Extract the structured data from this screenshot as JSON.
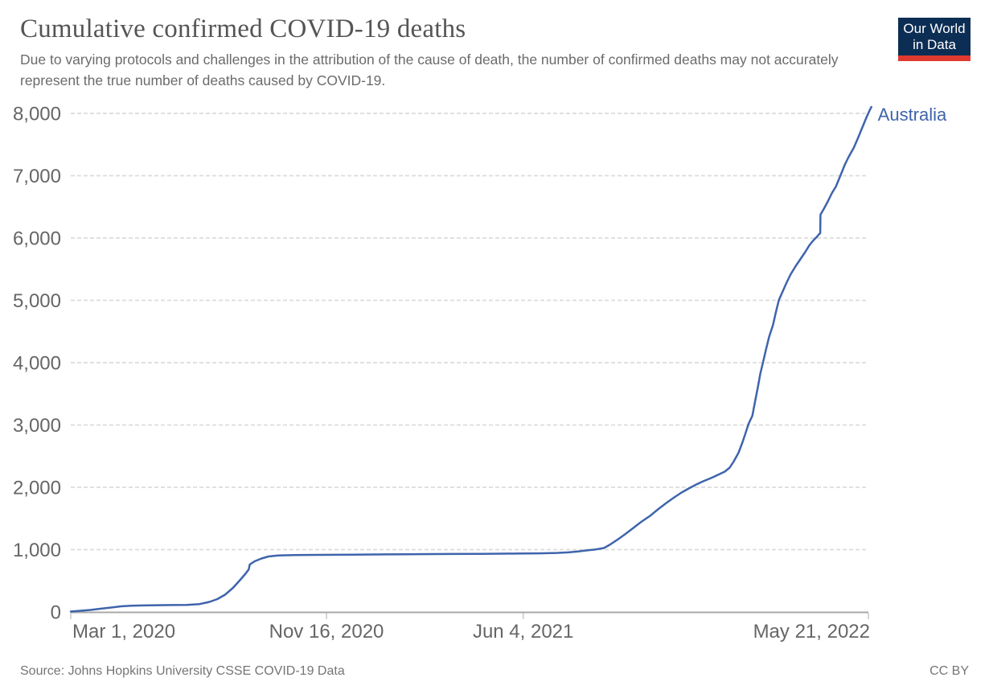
{
  "header": {
    "title": "Cumulative confirmed COVID-19 deaths",
    "subtitle": "Due to varying protocols and challenges in the attribution of the cause of death, the number of confirmed deaths may not accurately represent the true number of deaths caused by COVID-19.",
    "logo": {
      "line1": "Our World",
      "line2": "in Data",
      "bg_color": "#0d2e54",
      "stripe_color": "#e0392f"
    }
  },
  "footer": {
    "source": "Source: Johns Hopkins University CSSE COVID-19 Data",
    "license": "CC BY"
  },
  "colors": {
    "line_blue": "#3e64ac",
    "gridline": "#dcdcdc",
    "axis": "#a8a8a8",
    "tick": "#c8c8c8",
    "tick_label": "#666666"
  },
  "chart_data": {
    "type": "line",
    "title": "Cumulative confirmed COVID-19 deaths",
    "xlabel": "",
    "ylabel": "",
    "x_unit": "days since Mar 1, 2020",
    "xlim_days": [
      0,
      811
    ],
    "ylim": [
      0,
      8000
    ],
    "grid": "horizontal-dashed",
    "legend_position": "end-of-line",
    "x_ticks": [
      {
        "day": 0,
        "label": "Mar 1, 2020",
        "align": "start"
      },
      {
        "day": 260,
        "label": "Nov 16, 2020",
        "align": "middle"
      },
      {
        "day": 460,
        "label": "Jun 4, 2021",
        "align": "middle"
      },
      {
        "day": 811,
        "label": "May 21, 2022",
        "align": "end"
      }
    ],
    "y_ticks": [
      {
        "value": 0,
        "label": "0"
      },
      {
        "value": 1000,
        "label": "1,000"
      },
      {
        "value": 2000,
        "label": "2,000"
      },
      {
        "value": 3000,
        "label": "3,000"
      },
      {
        "value": 4000,
        "label": "4,000"
      },
      {
        "value": 5000,
        "label": "5,000"
      },
      {
        "value": 6000,
        "label": "6,000"
      },
      {
        "value": 7000,
        "label": "7,000"
      },
      {
        "value": 8000,
        "label": "8,000"
      }
    ],
    "series": [
      {
        "name": "Australia",
        "color": "#3e64ac",
        "points": [
          [
            0,
            6
          ],
          [
            10,
            19
          ],
          [
            20,
            32
          ],
          [
            30,
            52
          ],
          [
            41,
            71
          ],
          [
            51,
            90
          ],
          [
            61,
            99
          ],
          [
            74,
            105
          ],
          [
            88,
            108
          ],
          [
            103,
            111
          ],
          [
            118,
            114
          ],
          [
            131,
            126
          ],
          [
            141,
            161
          ],
          [
            149,
            206
          ],
          [
            157,
            277
          ],
          [
            165,
            387
          ],
          [
            172,
            510
          ],
          [
            178,
            619
          ],
          [
            181,
            684
          ],
          [
            182,
            761
          ],
          [
            187,
            813
          ],
          [
            194,
            858
          ],
          [
            201,
            890
          ],
          [
            211,
            906
          ],
          [
            227,
            914
          ],
          [
            255,
            916
          ],
          [
            288,
            920
          ],
          [
            321,
            924
          ],
          [
            354,
            928
          ],
          [
            386,
            930
          ],
          [
            419,
            933
          ],
          [
            452,
            937
          ],
          [
            476,
            941
          ],
          [
            494,
            947
          ],
          [
            506,
            956
          ],
          [
            516,
            970
          ],
          [
            525,
            988
          ],
          [
            534,
            1004
          ],
          [
            542,
            1026
          ],
          [
            548,
            1077
          ],
          [
            556,
            1161
          ],
          [
            564,
            1252
          ],
          [
            572,
            1348
          ],
          [
            580,
            1445
          ],
          [
            589,
            1542
          ],
          [
            597,
            1645
          ],
          [
            605,
            1742
          ],
          [
            613,
            1832
          ],
          [
            621,
            1916
          ],
          [
            629,
            1987
          ],
          [
            636,
            2045
          ],
          [
            643,
            2097
          ],
          [
            651,
            2148
          ],
          [
            658,
            2200
          ],
          [
            665,
            2252
          ],
          [
            670,
            2316
          ],
          [
            674,
            2413
          ],
          [
            679,
            2555
          ],
          [
            683,
            2723
          ],
          [
            686,
            2865
          ],
          [
            689,
            3013
          ],
          [
            693,
            3148
          ],
          [
            696,
            3394
          ],
          [
            699,
            3639
          ],
          [
            701,
            3819
          ],
          [
            704,
            4013
          ],
          [
            707,
            4219
          ],
          [
            710,
            4413
          ],
          [
            714,
            4606
          ],
          [
            717,
            4813
          ],
          [
            720,
            5006
          ],
          [
            724,
            5148
          ],
          [
            728,
            5290
          ],
          [
            732,
            5419
          ],
          [
            737,
            5548
          ],
          [
            742,
            5664
          ],
          [
            747,
            5781
          ],
          [
            751,
            5884
          ],
          [
            755,
            5961
          ],
          [
            759,
            6026
          ],
          [
            761,
            6065
          ],
          [
            762,
            6077
          ],
          [
            762.3,
            6374
          ],
          [
            766,
            6477
          ],
          [
            770,
            6594
          ],
          [
            774,
            6723
          ],
          [
            778,
            6826
          ],
          [
            781,
            6942
          ],
          [
            784,
            7058
          ],
          [
            787,
            7174
          ],
          [
            791,
            7303
          ],
          [
            796,
            7445
          ],
          [
            800,
            7587
          ],
          [
            803,
            7703
          ],
          [
            806,
            7819
          ],
          [
            809,
            7935
          ],
          [
            812,
            8039
          ],
          [
            814,
            8103
          ]
        ]
      }
    ]
  }
}
